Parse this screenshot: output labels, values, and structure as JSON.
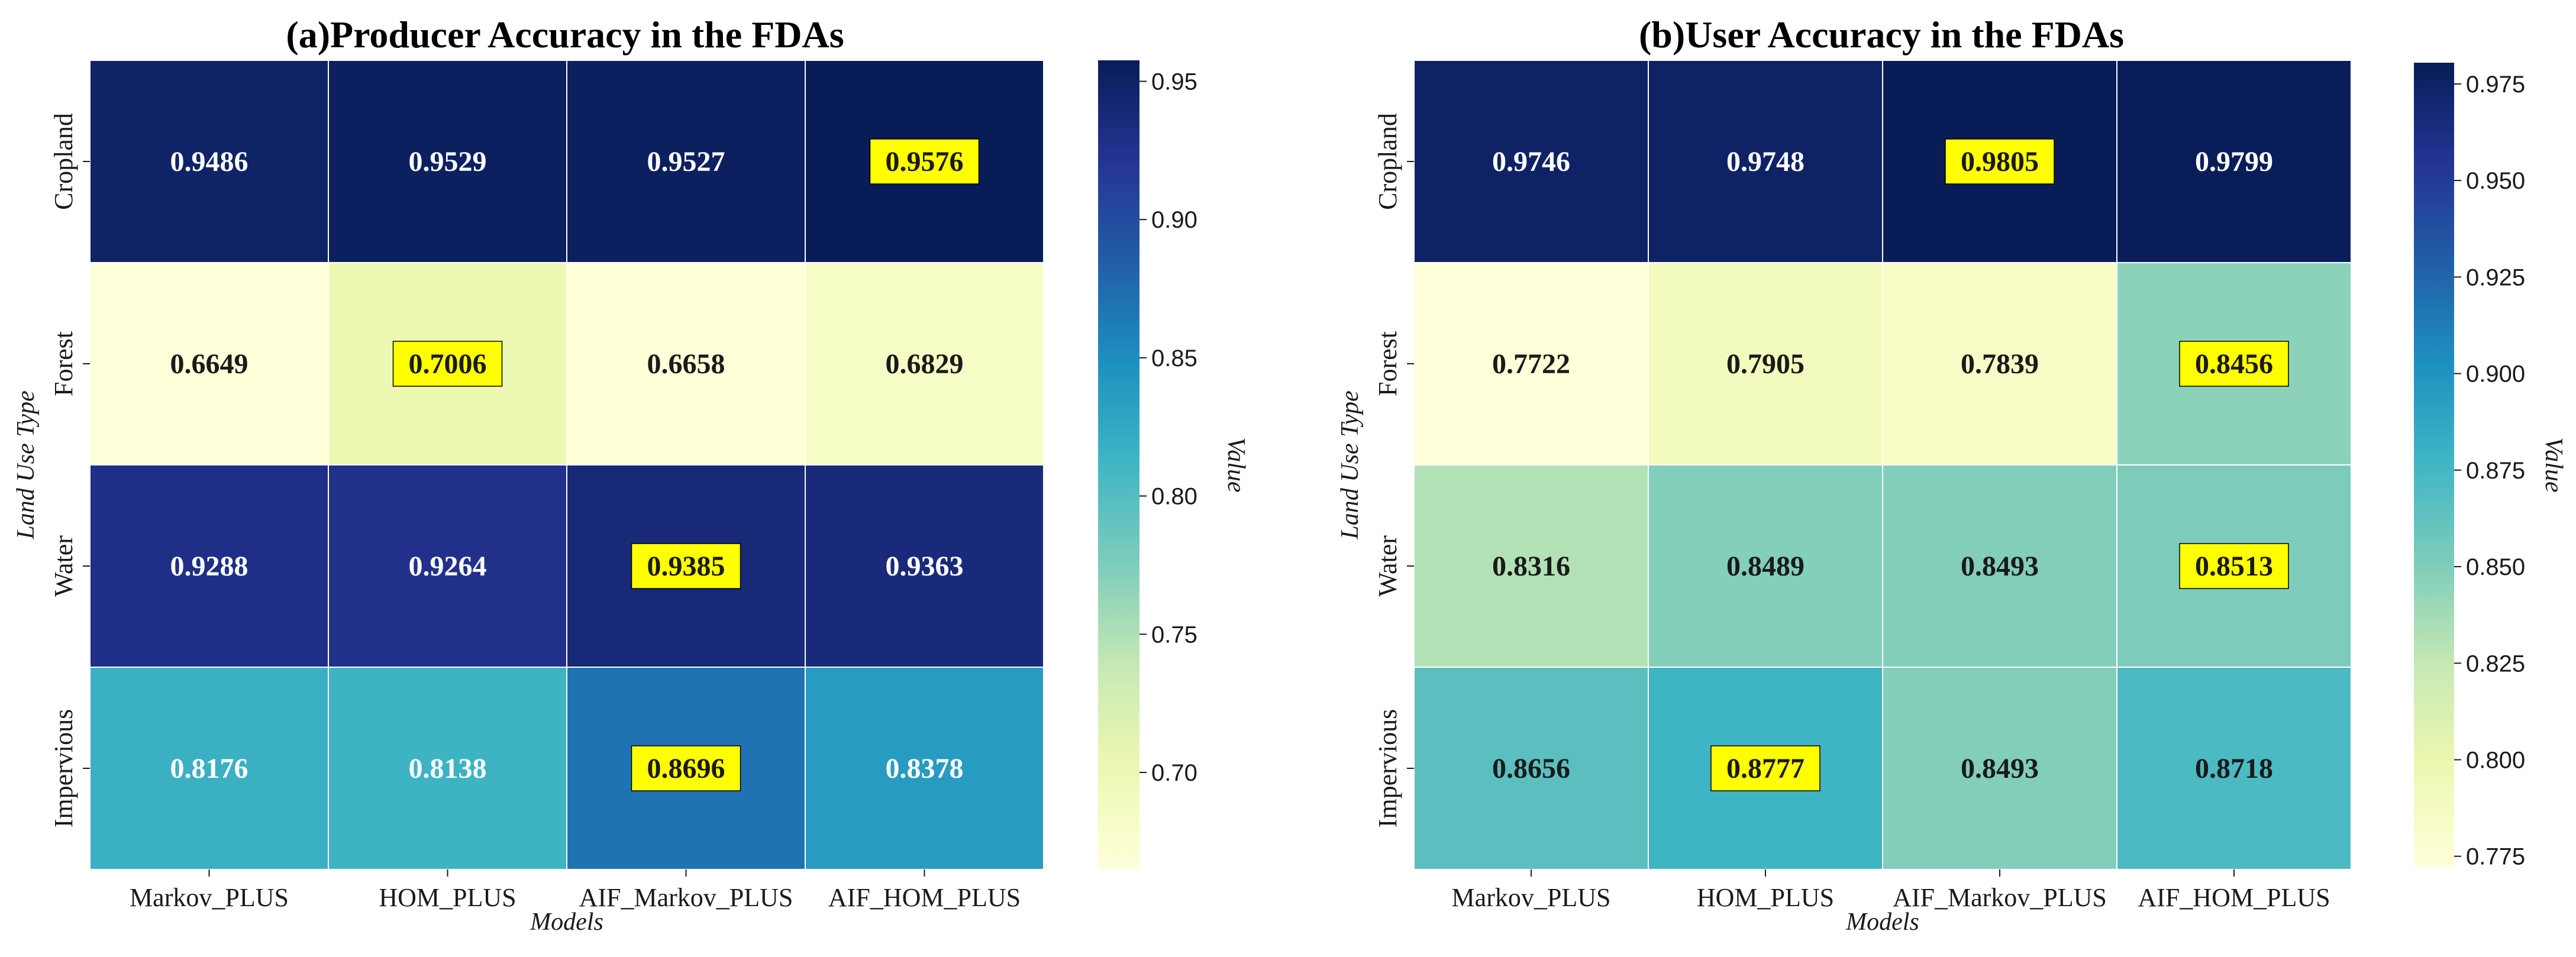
{
  "chart_data": [
    {
      "type": "heatmap",
      "title": "(a)Producer Accuracy in the FDAs",
      "xlabel": "Models",
      "ylabel": "Land Use Type",
      "x": [
        "Markov_PLUS",
        "HOM_PLUS",
        "AIF_Markov_PLUS",
        "AIF_HOM_PLUS"
      ],
      "y": [
        "Cropland",
        "Forest",
        "Water",
        "Impervious"
      ],
      "values": [
        [
          0.9486,
          0.9529,
          0.9527,
          0.9576
        ],
        [
          0.6649,
          0.7006,
          0.6658,
          0.6829
        ],
        [
          0.9288,
          0.9264,
          0.9385,
          0.9363
        ],
        [
          0.8176,
          0.8138,
          0.8696,
          0.8378
        ]
      ],
      "highlighted": [
        [
          0,
          3
        ],
        [
          1,
          1
        ],
        [
          2,
          2
        ],
        [
          3,
          2
        ]
      ],
      "colorbar": {
        "label": "Value",
        "range": [
          0.6649,
          0.9576
        ],
        "ticks": [
          "0.70",
          "0.75",
          "0.80",
          "0.85",
          "0.90",
          "0.95"
        ]
      }
    },
    {
      "type": "heatmap",
      "title": "(b)User Accuracy in the FDAs",
      "xlabel": "Models",
      "ylabel": "Land Use Type",
      "x": [
        "Markov_PLUS",
        "HOM_PLUS",
        "AIF_Markov_PLUS",
        "AIF_HOM_PLUS"
      ],
      "y": [
        "Cropland",
        "Forest",
        "Water",
        "Impervious"
      ],
      "values": [
        [
          0.9746,
          0.9748,
          0.9805,
          0.9799
        ],
        [
          0.7722,
          0.7905,
          0.7839,
          0.8456
        ],
        [
          0.8316,
          0.8489,
          0.8493,
          0.8513
        ],
        [
          0.8656,
          0.8777,
          0.8493,
          0.8718
        ]
      ],
      "highlighted": [
        [
          0,
          2
        ],
        [
          1,
          3
        ],
        [
          2,
          3
        ],
        [
          3,
          1
        ]
      ],
      "colorbar": {
        "label": "Value",
        "range": [
          0.7722,
          0.9805
        ],
        "ticks": [
          "0.775",
          "0.800",
          "0.825",
          "0.850",
          "0.875",
          "0.900",
          "0.925",
          "0.950",
          "0.975"
        ]
      }
    }
  ],
  "colors": {
    "highlight": "#ffff00",
    "grid_line": "#ffffff",
    "light_text": "#ffffff",
    "dark_text": "#1a1a1a",
    "colormap": [
      "#ffffd9",
      "#edf8b1",
      "#c7e9b4",
      "#7fcdbb",
      "#41b6c4",
      "#1d91c0",
      "#225ea8",
      "#253494",
      "#081d58"
    ]
  }
}
